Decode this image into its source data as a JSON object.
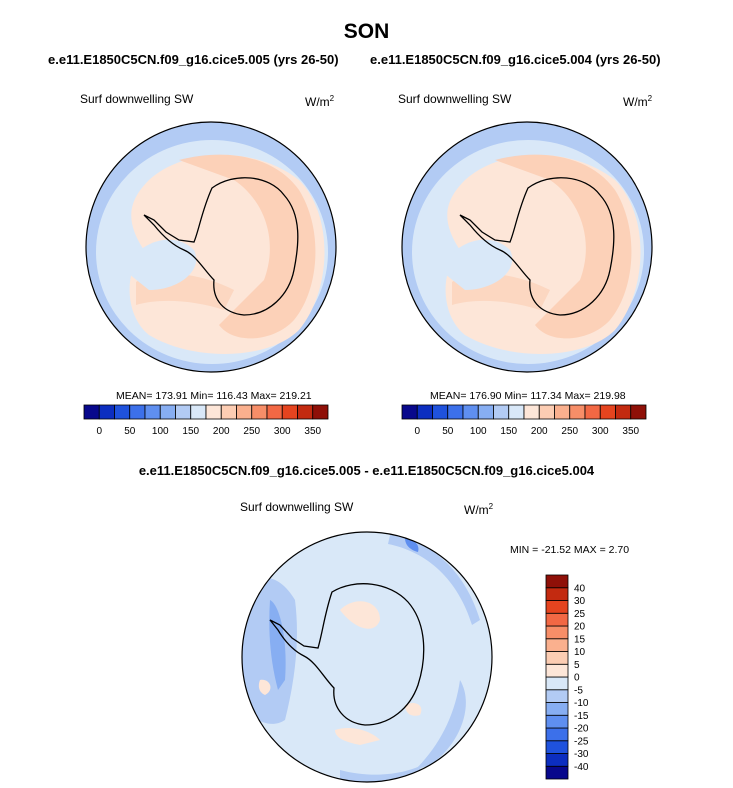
{
  "figure": {
    "title": "SON",
    "subtitle_left": "e.e11.E1850C5CN.f09_g16.cice5.005 (yrs 26-50)",
    "subtitle_right": "e.e11.E1850C5CN.f09_g16.cice5.004 (yrs 26-50)",
    "diff_title": "e.e11.E1850C5CN.f09_g16.cice5.005 - e.e11.E1850C5CN.f09_g16.cice5.004"
  },
  "panel_left": {
    "variable": "Surf downwelling SW",
    "units_base": "W/m",
    "units_exp": "2",
    "stats": "MEAN= 173.91  Min= 116.43  Max= 219.21"
  },
  "panel_right": {
    "variable": "Surf downwelling SW",
    "units_base": "W/m",
    "units_exp": "2",
    "stats": "MEAN= 176.90  Min= 117.34  Max= 219.98"
  },
  "panel_diff": {
    "variable": "Surf downwelling SW",
    "units_base": "W/m",
    "units_exp": "2",
    "stats": "MIN = -21.52 MAX =   2.70"
  },
  "colorbar_abs": {
    "colors": [
      "#08088c",
      "#0c2ec0",
      "#1f52dd",
      "#3c70ea",
      "#5f8ff0",
      "#87aef2",
      "#b2cbf4",
      "#d9e8f8",
      "#fde6d8",
      "#fccdb3",
      "#fab08e",
      "#f78e68",
      "#f26844",
      "#e5441f",
      "#c32a10",
      "#8f1008"
    ],
    "labels": [
      "0",
      "50",
      "100",
      "150",
      "200",
      "250",
      "300",
      "350"
    ]
  },
  "colorbar_diff": {
    "colors": [
      "#08088c",
      "#0c2ec0",
      "#1f52dd",
      "#3c70ea",
      "#5f8ff0",
      "#87aef2",
      "#b2cbf4",
      "#d9e8f8",
      "#fde6d8",
      "#fccdb3",
      "#fab08e",
      "#f78e68",
      "#f26844",
      "#e5441f",
      "#c32a10",
      "#8f1008"
    ],
    "labels": [
      "-40",
      "-30",
      "-25",
      "-20",
      "-15",
      "-10",
      "-5",
      "0",
      "5",
      "10",
      "15",
      "20",
      "25",
      "30",
      "40"
    ]
  }
}
